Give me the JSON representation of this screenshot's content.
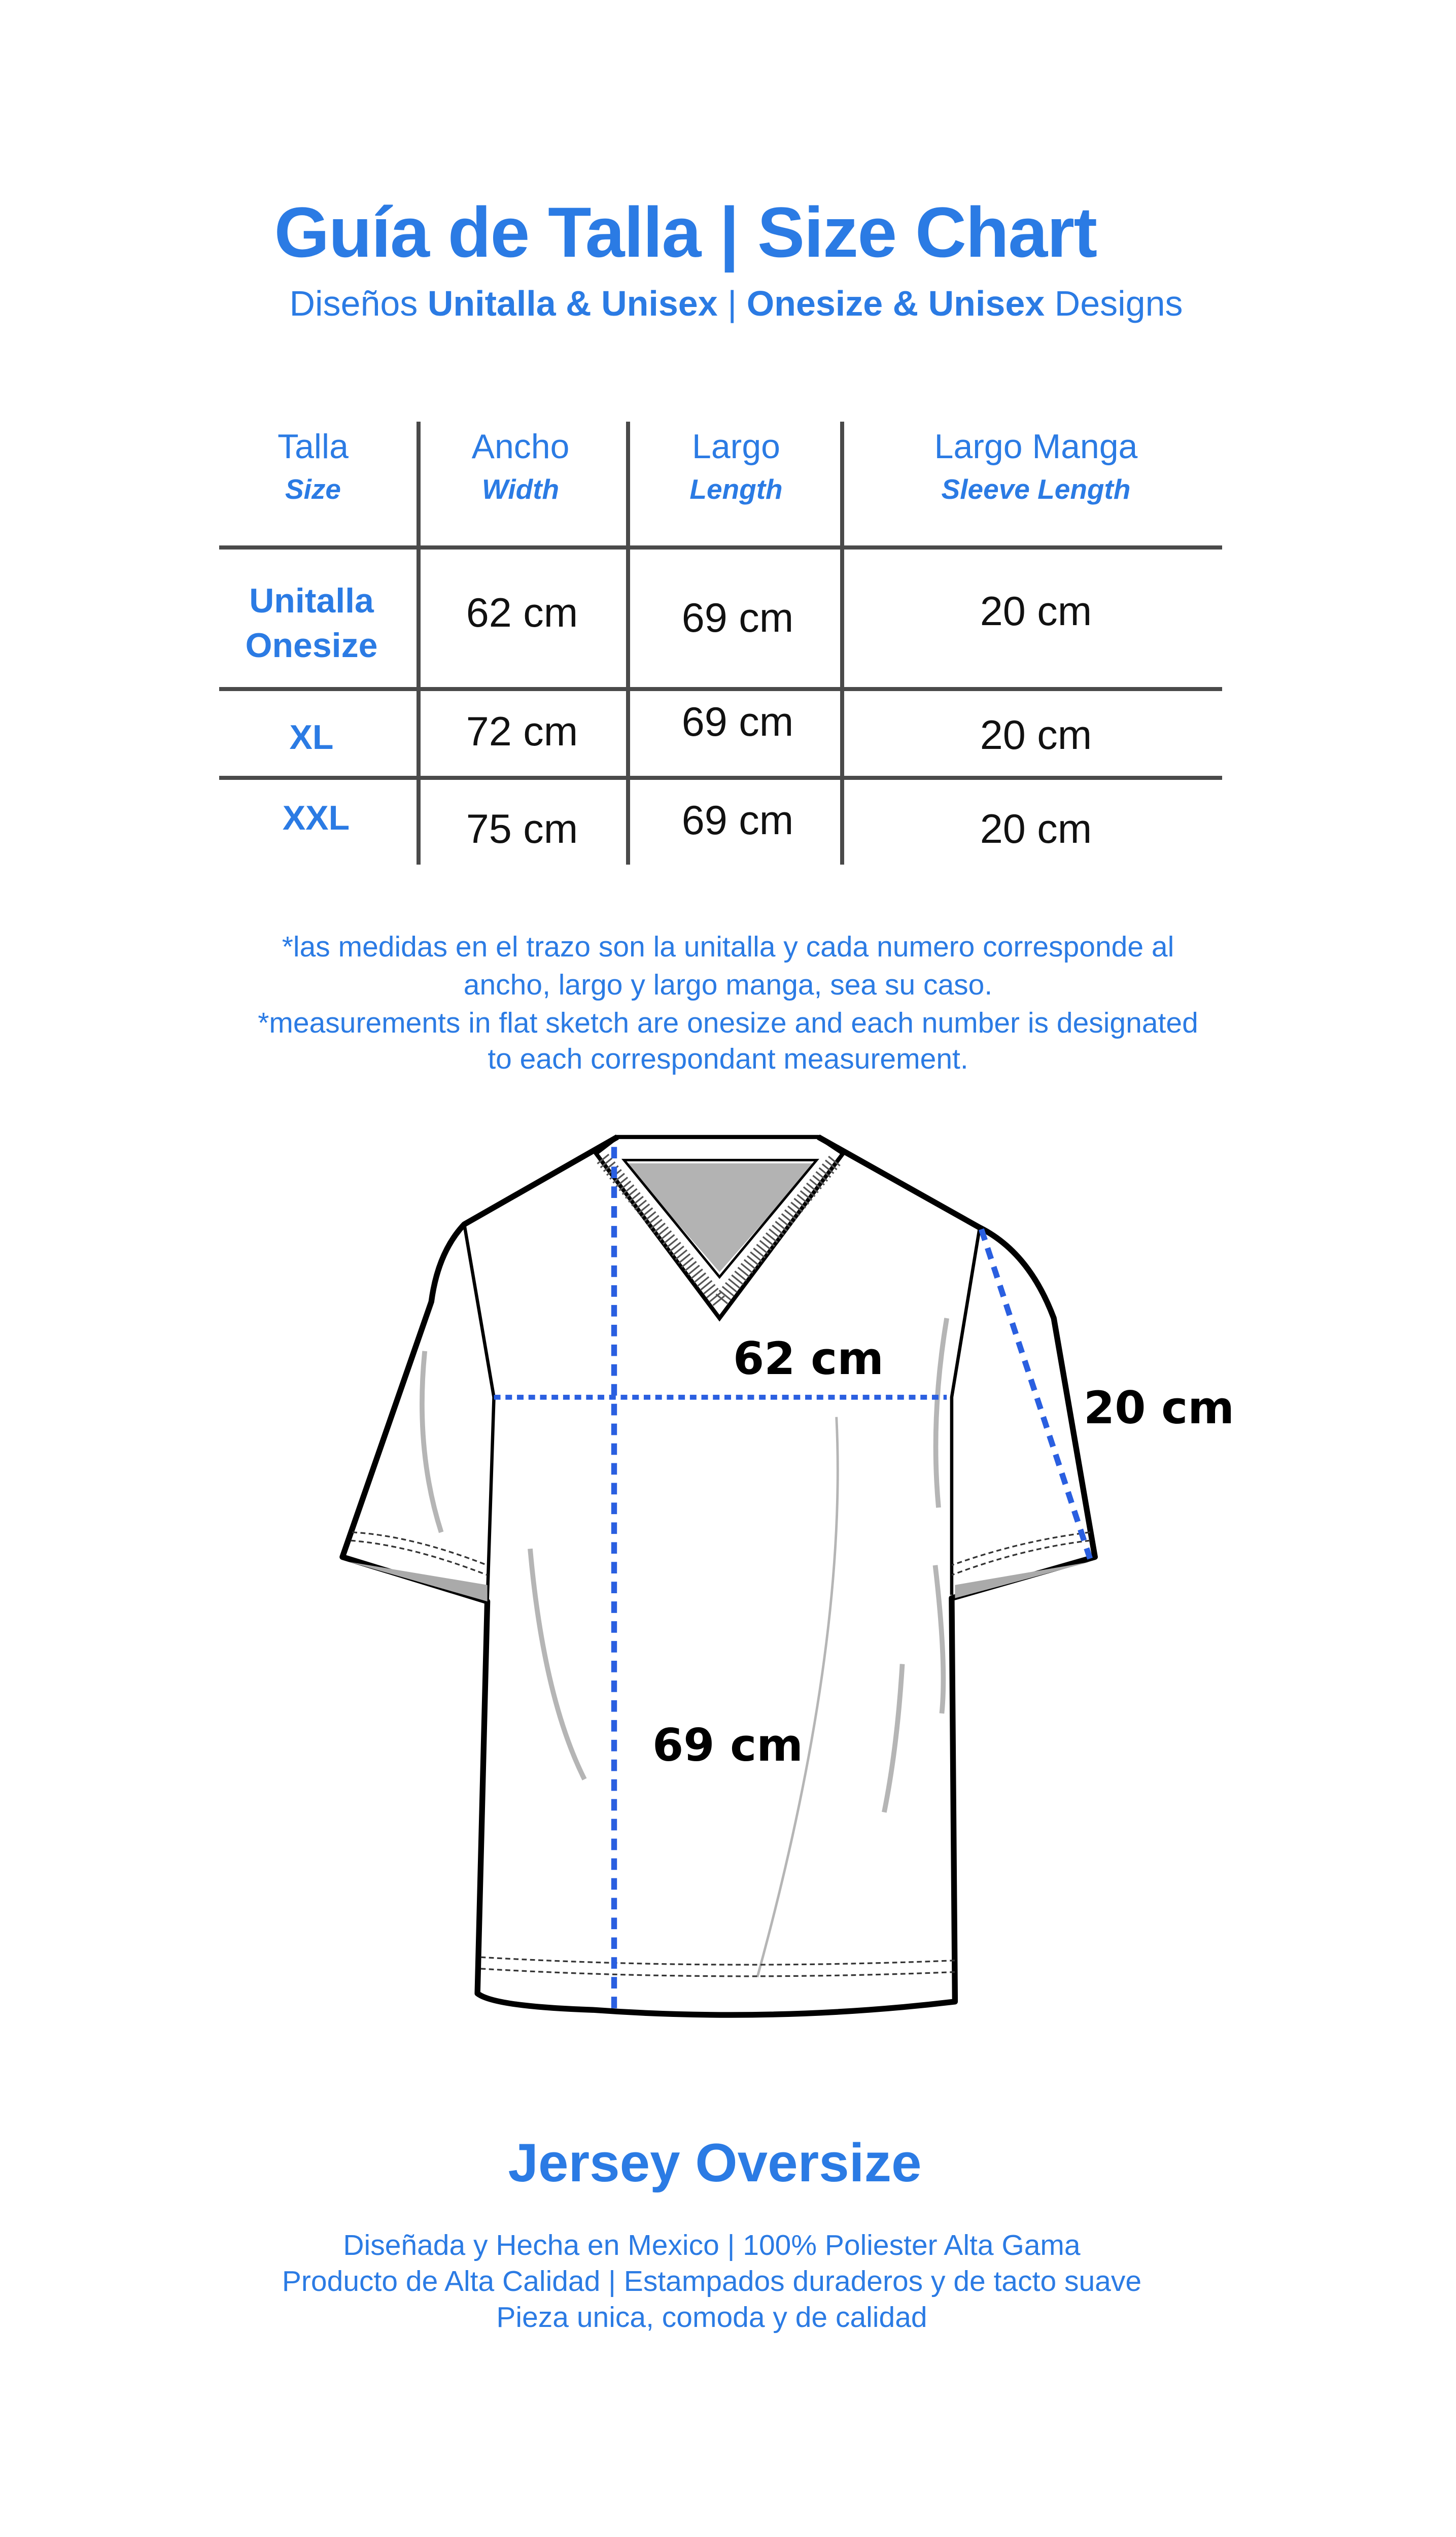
{
  "header": {
    "title": "Guía de Talla | Size Chart",
    "subtitle": {
      "p1": "Diseños ",
      "p2": "Unitalla & Unisex",
      "p3": " | ",
      "p4": "Onesize & Unisex",
      "p5": " Designs"
    }
  },
  "table": {
    "columns": [
      {
        "es": "Talla",
        "en": "Size"
      },
      {
        "es": "Ancho",
        "en": "Width"
      },
      {
        "es": "Largo",
        "en": "Length"
      },
      {
        "es": "Largo Manga",
        "en": "Sleeve Length"
      }
    ],
    "rows": [
      {
        "size1": "Unitalla",
        "size2": "Onesize",
        "width": "62 cm",
        "length": "69 cm",
        "sleeve": "20 cm"
      },
      {
        "size1": "XL",
        "width": "72 cm",
        "length": "69 cm",
        "sleeve": "20 cm"
      },
      {
        "size1": "XXL",
        "width": "75 cm",
        "length": "69 cm",
        "sleeve": "20 cm"
      }
    ]
  },
  "notes": [
    "*las medidas en el trazo son la unitalla y cada numero corresponde al",
    "ancho, largo y largo manga, sea su caso.",
    "*measurements in flat sketch are onesize and each number is designated",
    "to each correspondant measurement."
  ],
  "sketch": {
    "width_label": "62 cm",
    "sleeve_label": "20 cm",
    "length_label": "69 cm"
  },
  "footer": {
    "product": "Jersey Oversize",
    "lines": [
      "Diseñada y Hecha en Mexico | 100% Poliester Alta Gama",
      "Producto de Alta Calidad | Estampados duraderos y de tacto suave",
      "Pieza unica, comoda y de calidad"
    ]
  },
  "colors": {
    "brand_blue": "#2b7be4",
    "measure_line": "#2a5fe0",
    "text": "#111111"
  }
}
